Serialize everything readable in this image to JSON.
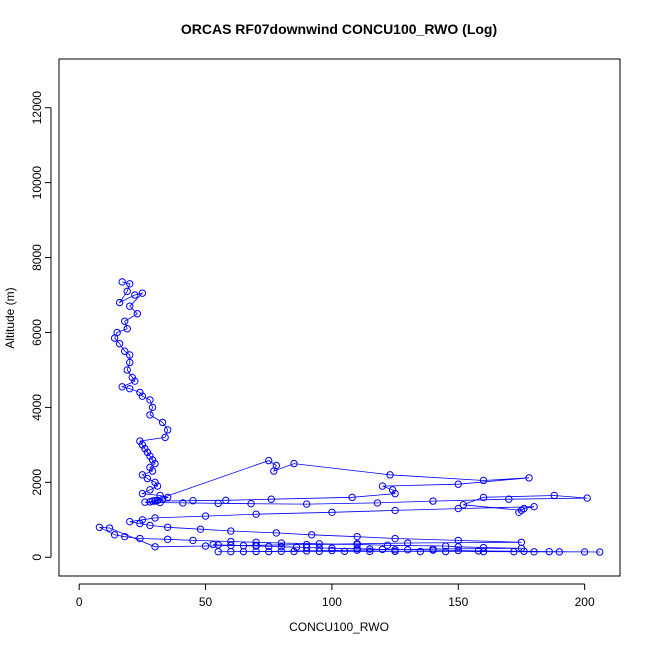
{
  "chart_data": {
    "type": "scatter",
    "title": "ORCAS RF07downwind CONCU100_RWO (Log)",
    "xlabel": "CONCU100_RWO",
    "ylabel": "Altitude (m)",
    "xlim": [
      -8,
      214
    ],
    "ylim": [
      -500,
      13300
    ],
    "x_ticks": [
      0,
      50,
      100,
      150,
      200
    ],
    "y_ticks": [
      0,
      2000,
      4000,
      6000,
      8000,
      10000,
      12000
    ],
    "grid": false,
    "legend": "none",
    "series": [
      {
        "color": "#0000ff",
        "marker": "open-circle",
        "connect_points": true,
        "x": [
          17,
          20,
          19,
          16,
          22,
          25,
          20,
          23,
          18,
          19,
          15,
          14,
          16,
          18,
          20,
          20,
          19,
          21,
          22,
          17,
          20,
          24,
          25,
          28,
          29,
          28,
          33,
          35,
          34,
          24,
          25,
          26,
          27,
          28,
          29,
          30,
          28,
          29,
          25,
          27,
          30,
          31,
          28,
          25,
          32,
          35,
          33,
          31,
          30,
          29,
          75,
          78,
          77,
          85,
          123,
          160,
          178,
          150,
          120,
          124,
          125,
          108,
          76,
          58,
          45,
          30,
          28,
          26,
          32,
          41,
          55,
          68,
          90,
          118,
          140,
          170,
          201,
          188,
          160,
          152,
          175,
          174,
          176,
          180,
          150,
          125,
          100,
          70,
          50,
          30,
          25,
          20,
          24,
          28,
          35,
          48,
          60,
          78,
          92,
          110,
          125,
          150,
          175,
          130,
          110,
          90,
          70,
          50,
          30,
          12,
          8,
          14,
          18,
          24,
          35,
          45,
          60,
          70,
          80,
          95,
          110,
          122,
          145,
          150,
          160,
          175,
          140,
          125,
          110,
          100,
          90,
          80,
          70,
          60,
          55,
          65,
          75,
          85,
          95,
          105,
          115,
          125,
          135,
          145,
          160,
          172,
          180,
          190,
          200,
          206,
          186,
          176,
          158,
          150,
          140,
          130,
          120,
          115,
          110,
          100,
          95,
          90,
          86,
          80,
          75,
          70,
          65,
          60,
          55,
          53
        ],
        "y": [
          7350,
          7300,
          7100,
          6800,
          7000,
          7050,
          6700,
          6500,
          6300,
          6100,
          6000,
          5850,
          5700,
          5500,
          5400,
          5200,
          5000,
          4800,
          4700,
          4550,
          4500,
          4400,
          4300,
          4200,
          4000,
          3800,
          3600,
          3400,
          3200,
          3100,
          3000,
          2900,
          2800,
          2700,
          2600,
          2500,
          2400,
          2300,
          2200,
          2100,
          2000,
          1900,
          1800,
          1700,
          1650,
          1600,
          1550,
          1520,
          1510,
          1500,
          2580,
          2450,
          2300,
          2500,
          2200,
          2050,
          2120,
          1950,
          1900,
          1800,
          1700,
          1600,
          1550,
          1520,
          1510,
          1500,
          1480,
          1470,
          1460,
          1450,
          1440,
          1430,
          1420,
          1450,
          1500,
          1550,
          1580,
          1650,
          1600,
          1400,
          1250,
          1200,
          1300,
          1350,
          1300,
          1250,
          1200,
          1150,
          1100,
          1050,
          1000,
          950,
          900,
          850,
          800,
          750,
          700,
          650,
          600,
          550,
          500,
          450,
          400,
          380,
          360,
          340,
          320,
          300,
          280,
          780,
          800,
          600,
          550,
          500,
          480,
          450,
          420,
          400,
          380,
          360,
          340,
          320,
          300,
          280,
          260,
          240,
          220,
          200,
          190,
          180,
          170,
          160,
          155,
          150,
          148,
          150,
          152,
          155,
          158,
          160,
          158,
          156,
          154,
          152,
          150,
          148,
          146,
          144,
          142,
          140,
          150,
          160,
          170,
          180,
          190,
          200,
          210,
          220,
          230,
          240,
          250,
          260,
          270,
          280,
          290,
          300,
          310,
          320,
          330,
          340
        ]
      }
    ]
  }
}
